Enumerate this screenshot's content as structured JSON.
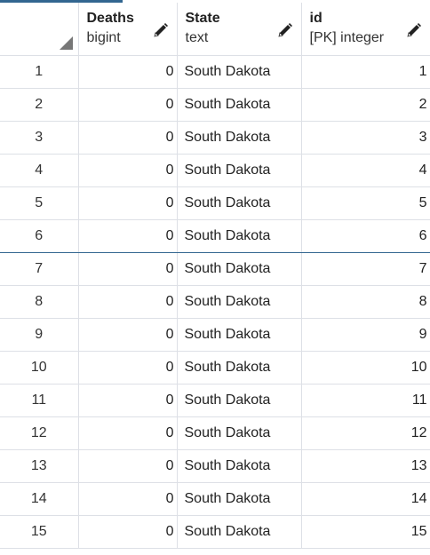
{
  "columns": [
    {
      "name": "Deaths",
      "type": "bigint"
    },
    {
      "name": "State",
      "type": "text"
    },
    {
      "name": "id",
      "type": "[PK] integer"
    }
  ],
  "icons": {
    "edit": "pencil-icon",
    "select_all": "select-all-corner-icon"
  },
  "colors": {
    "accent": "#326690",
    "grid_line": "#dde0e6"
  },
  "rows": [
    {
      "num": "1",
      "deaths": "0",
      "state": "South Dakota",
      "id": "1"
    },
    {
      "num": "2",
      "deaths": "0",
      "state": "South Dakota",
      "id": "2"
    },
    {
      "num": "3",
      "deaths": "0",
      "state": "South Dakota",
      "id": "3"
    },
    {
      "num": "4",
      "deaths": "0",
      "state": "South Dakota",
      "id": "4"
    },
    {
      "num": "5",
      "deaths": "0",
      "state": "South Dakota",
      "id": "5"
    },
    {
      "num": "6",
      "deaths": "0",
      "state": "South Dakota",
      "id": "6"
    },
    {
      "num": "7",
      "deaths": "0",
      "state": "South Dakota",
      "id": "7"
    },
    {
      "num": "8",
      "deaths": "0",
      "state": "South Dakota",
      "id": "8"
    },
    {
      "num": "9",
      "deaths": "0",
      "state": "South Dakota",
      "id": "9"
    },
    {
      "num": "10",
      "deaths": "0",
      "state": "South Dakota",
      "id": "10"
    },
    {
      "num": "11",
      "deaths": "0",
      "state": "South Dakota",
      "id": "11"
    },
    {
      "num": "12",
      "deaths": "0",
      "state": "South Dakota",
      "id": "12"
    },
    {
      "num": "13",
      "deaths": "0",
      "state": "South Dakota",
      "id": "13"
    },
    {
      "num": "14",
      "deaths": "0",
      "state": "South Dakota",
      "id": "14"
    },
    {
      "num": "15",
      "deaths": "0",
      "state": "South Dakota",
      "id": "15"
    }
  ]
}
